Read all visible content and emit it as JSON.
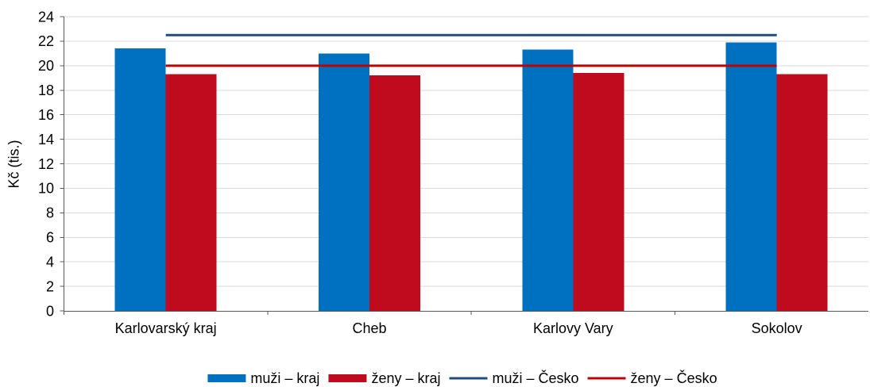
{
  "chart_data": {
    "type": "bar",
    "categories": [
      "Karlovarský kraj",
      "Cheb",
      "Karlovy Vary",
      "Sokolov"
    ],
    "series": [
      {
        "name": "muži – kraj",
        "type": "bar",
        "values": [
          21.4,
          21.0,
          21.3,
          21.9
        ],
        "color": "#0070c0"
      },
      {
        "name": "ženy – kraj",
        "type": "bar",
        "values": [
          19.3,
          19.2,
          19.4,
          19.3
        ],
        "color": "#c00a1e"
      },
      {
        "name": "muži – Česko",
        "type": "line",
        "values": [
          22.5,
          22.5,
          22.5,
          22.5
        ],
        "color": "#1f4e79"
      },
      {
        "name": "ženy – Česko",
        "type": "line",
        "values": [
          20.0,
          20.0,
          20.0,
          20.0
        ],
        "color": "#c00000"
      }
    ],
    "ylabel": "Kč (tis.)",
    "ylim": [
      0,
      24
    ],
    "yticks": [
      0,
      2,
      4,
      6,
      8,
      10,
      12,
      14,
      16,
      18,
      20,
      22,
      24
    ],
    "grid": true,
    "legend": "bottom"
  }
}
